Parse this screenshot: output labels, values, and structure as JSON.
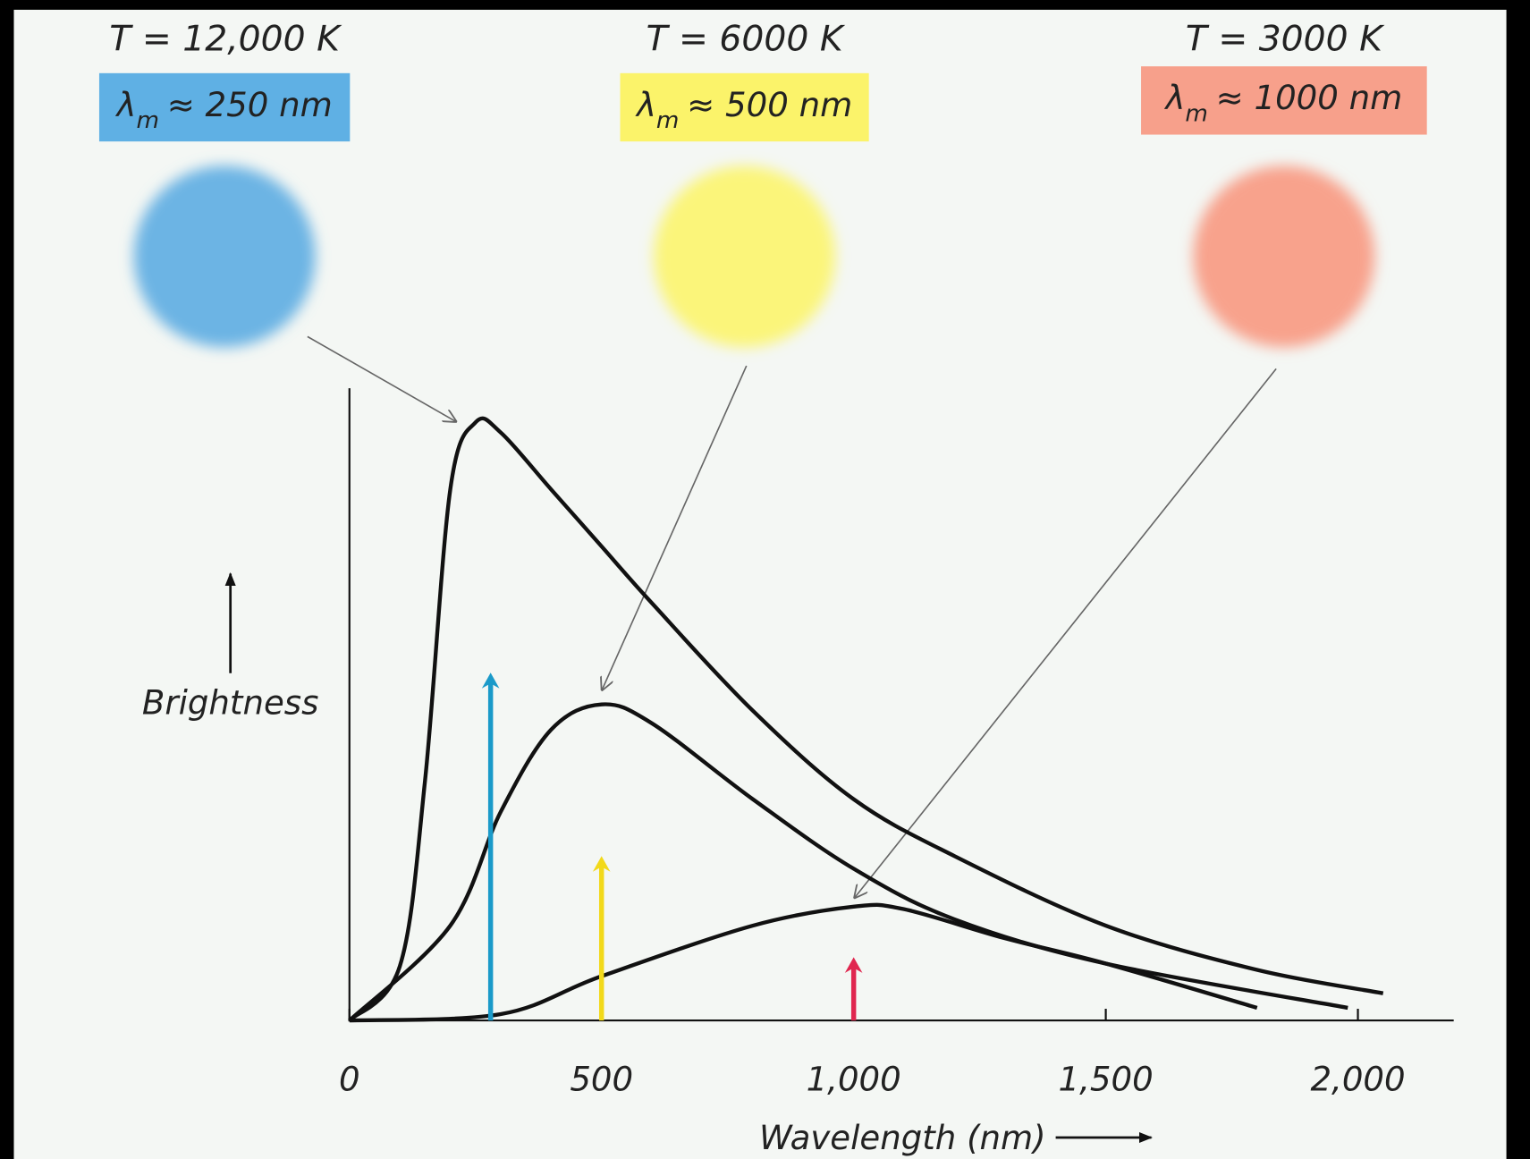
{
  "chart_data": {
    "type": "line",
    "ylabel": "Brightness",
    "xlabel": "Wavelength (nm)",
    "xlim": [
      0,
      2190
    ],
    "ylim": [
      0,
      100
    ],
    "xticks": [
      0,
      500,
      {
        "value": 1000,
        "label": "1,000"
      },
      {
        "value": 1500,
        "label": "1,500"
      },
      {
        "value": 2000,
        "label": "2,000"
      }
    ],
    "panels": [
      {
        "title": "T = 12,000 K",
        "symbol": "λ",
        "subscript": "m",
        "text": "≈ 250 nm",
        "color": "#6cb4e4",
        "box_color": "#5fb0e4"
      },
      {
        "title": "T = 6000 K",
        "symbol": "λ",
        "subscript": "m",
        "text": "≈ 500 nm",
        "color": "#fbf57a",
        "box_color": "#fbf36a"
      },
      {
        "title": "T = 3000 K",
        "symbol": "λ",
        "subscript": "m",
        "text": "≈ 1000 nm",
        "color": "#f8a28c",
        "box_color": "#f7a08b"
      }
    ],
    "series": [
      {
        "name": "T = 12,000 K",
        "color": "#111111",
        "x": [
          0,
          100,
          150,
          200,
          250,
          300,
          400,
          500,
          600,
          800,
          1000,
          1200,
          1500,
          1800,
          2050
        ],
        "values": [
          0,
          8.6,
          38,
          84,
          94.6,
          93,
          84,
          75,
          66,
          49,
          35,
          26,
          15,
          8,
          4.3
        ]
      },
      {
        "name": "T = 6000 K",
        "color": "#111111",
        "x": [
          0,
          200,
          300,
          400,
          500,
          600,
          800,
          1000,
          1200,
          1500,
          1980
        ],
        "values": [
          0,
          15,
          33,
          46,
          50,
          47,
          35,
          24,
          16,
          9,
          2
        ]
      },
      {
        "name": "T = 3000 K",
        "color": "#111111",
        "x": [
          0,
          300,
          500,
          800,
          1000,
          1100,
          1300,
          1500,
          1800
        ],
        "values": [
          0,
          1,
          7,
          15,
          18,
          17.6,
          13,
          9,
          2
        ]
      }
    ],
    "peak_arrows": [
      {
        "x": 280,
        "value": 55,
        "color": "#1a9ac9"
      },
      {
        "x": 500,
        "value": 26,
        "color": "#f2d91a"
      },
      {
        "x": 1000,
        "value": 10,
        "color": "#e0264f"
      }
    ]
  }
}
